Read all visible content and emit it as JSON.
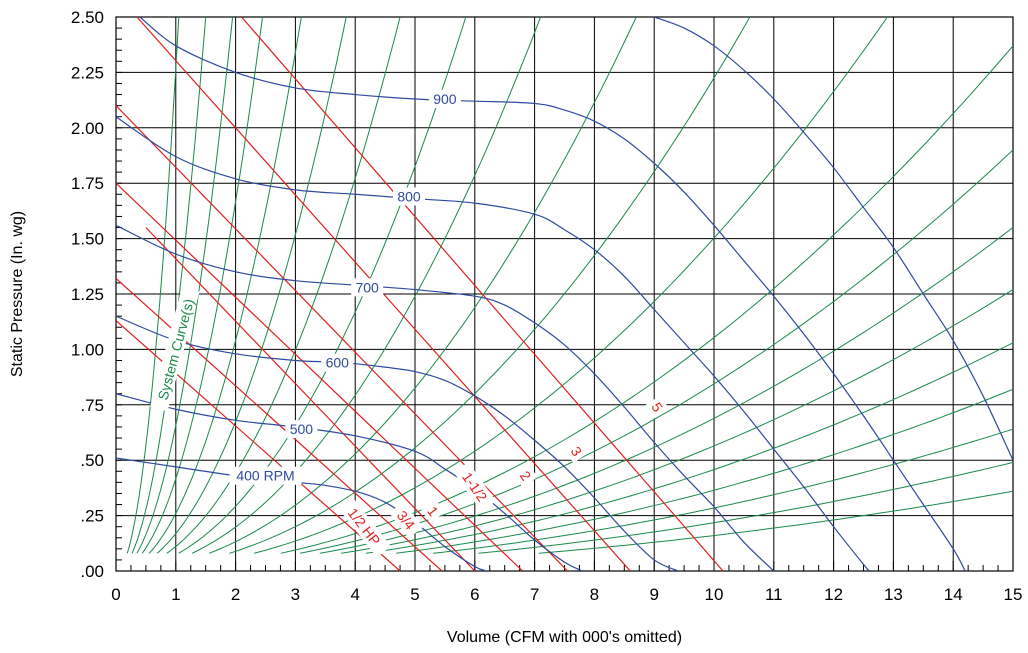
{
  "chart_data": {
    "type": "line",
    "title": "",
    "xlabel": "Volume (CFM with 000's omitted)",
    "ylabel": "Static Pressure (In. wg)",
    "xlim": [
      0,
      15
    ],
    "ylim": [
      0,
      2.5
    ],
    "grid": true,
    "x_ticks": [
      "0",
      "1",
      "2",
      "3",
      "4",
      "5",
      "6",
      "7",
      "8",
      "9",
      "10",
      "11",
      "12",
      "13",
      "14",
      "15"
    ],
    "y_ticks": [
      ".00",
      ".25",
      ".50",
      ".75",
      "1.00",
      "1.25",
      "1.50",
      "1.75",
      "2.00",
      "2.25",
      "2.50"
    ],
    "colors": {
      "rpm": "#2e4a9e",
      "hp": "#e0201c",
      "system": "#1a8a4a",
      "grid": "#000000"
    },
    "rpm_curves": [
      {
        "label": "400  RPM",
        "points": [
          [
            0,
            0.51
          ],
          [
            1,
            0.47
          ],
          [
            2,
            0.43
          ],
          [
            3,
            0.4
          ],
          [
            3.4,
            0.39
          ],
          [
            4,
            0.36
          ],
          [
            4.5,
            0.31
          ],
          [
            5,
            0.22
          ],
          [
            5.5,
            0.11
          ],
          [
            6,
            0.02
          ],
          [
            6.2,
            0
          ]
        ],
        "label_at": [
          2.5,
          0.43
        ]
      },
      {
        "label": "500",
        "points": [
          [
            0,
            0.8
          ],
          [
            1,
            0.73
          ],
          [
            2,
            0.68
          ],
          [
            3,
            0.65
          ],
          [
            4,
            0.61
          ],
          [
            5,
            0.54
          ],
          [
            5.5,
            0.46
          ],
          [
            6,
            0.37
          ],
          [
            6.5,
            0.26
          ],
          [
            7,
            0.14
          ],
          [
            7.5,
            0.04
          ],
          [
            7.8,
            0
          ]
        ],
        "label_at": [
          3.1,
          0.64
        ]
      },
      {
        "label": "600",
        "points": [
          [
            0,
            1.15
          ],
          [
            1,
            1.04
          ],
          [
            2,
            0.98
          ],
          [
            3,
            0.95
          ],
          [
            3.8,
            0.94
          ],
          [
            4.5,
            0.92
          ],
          [
            5,
            0.9
          ],
          [
            5.5,
            0.86
          ],
          [
            6,
            0.79
          ],
          [
            6.5,
            0.7
          ],
          [
            7,
            0.59
          ],
          [
            7.5,
            0.47
          ],
          [
            8,
            0.33
          ],
          [
            8.5,
            0.18
          ],
          [
            9,
            0.05
          ],
          [
            9.4,
            0
          ]
        ],
        "label_at": [
          3.7,
          0.94
        ]
      },
      {
        "label": "700",
        "points": [
          [
            0,
            1.56
          ],
          [
            1,
            1.43
          ],
          [
            2,
            1.35
          ],
          [
            3,
            1.31
          ],
          [
            4,
            1.29
          ],
          [
            5,
            1.27
          ],
          [
            6,
            1.24
          ],
          [
            6.5,
            1.2
          ],
          [
            7,
            1.12
          ],
          [
            7.5,
            1.02
          ],
          [
            8,
            0.89
          ],
          [
            8.5,
            0.74
          ],
          [
            9,
            0.58
          ],
          [
            9.5,
            0.43
          ],
          [
            10,
            0.29
          ],
          [
            10.5,
            0.13
          ],
          [
            11,
            0
          ]
        ],
        "label_at": [
          4.2,
          1.28
        ]
      },
      {
        "label": "800",
        "points": [
          [
            0,
            2.05
          ],
          [
            1,
            1.87
          ],
          [
            2,
            1.77
          ],
          [
            3,
            1.72
          ],
          [
            4,
            1.7
          ],
          [
            5,
            1.68
          ],
          [
            6,
            1.66
          ],
          [
            7,
            1.61
          ],
          [
            7.5,
            1.54
          ],
          [
            8,
            1.45
          ],
          [
            8.5,
            1.33
          ],
          [
            9,
            1.18
          ],
          [
            9.5,
            1.03
          ],
          [
            10,
            0.88
          ],
          [
            10.5,
            0.72
          ],
          [
            11,
            0.55
          ],
          [
            11.5,
            0.38
          ],
          [
            12,
            0.2
          ],
          [
            12.5,
            0.03
          ],
          [
            12.6,
            0
          ]
        ],
        "label_at": [
          4.9,
          1.69
        ]
      },
      {
        "label": "900",
        "points": [
          [
            0.4,
            2.5
          ],
          [
            1,
            2.37
          ],
          [
            2,
            2.25
          ],
          [
            3,
            2.18
          ],
          [
            4,
            2.15
          ],
          [
            5,
            2.13
          ],
          [
            6,
            2.12
          ],
          [
            7,
            2.11
          ],
          [
            7.5,
            2.08
          ],
          [
            8,
            2.03
          ],
          [
            8.5,
            1.95
          ],
          [
            9,
            1.84
          ],
          [
            9.5,
            1.71
          ],
          [
            10,
            1.56
          ],
          [
            10.5,
            1.4
          ],
          [
            11,
            1.24
          ],
          [
            11.5,
            1.07
          ],
          [
            12,
            0.89
          ],
          [
            12.5,
            0.7
          ],
          [
            13,
            0.5
          ],
          [
            13.5,
            0.3
          ],
          [
            14,
            0.1
          ],
          [
            14.2,
            0
          ]
        ],
        "label_at": [
          5.5,
          2.13
        ]
      },
      {
        "label": "",
        "points": [
          [
            9,
            2.5
          ],
          [
            9.5,
            2.45
          ],
          [
            10,
            2.37
          ],
          [
            10.5,
            2.26
          ],
          [
            11,
            2.13
          ],
          [
            11.5,
            1.98
          ],
          [
            12,
            1.82
          ],
          [
            12.5,
            1.64
          ],
          [
            13,
            1.46
          ],
          [
            13.5,
            1.25
          ],
          [
            14,
            1.04
          ],
          [
            14.5,
            0.79
          ],
          [
            15,
            0.5
          ]
        ],
        "label_at": null
      }
    ],
    "hp_curves": [
      {
        "label": "1/2  HP",
        "points": [
          [
            0,
            1.13
          ],
          [
            4.75,
            0
          ]
        ],
        "label_at": [
          4.15,
          0.2
        ],
        "angle": 52
      },
      {
        "label": "3/4",
        "points": [
          [
            0,
            1.32
          ],
          [
            5.45,
            0
          ]
        ],
        "label_at": [
          4.85,
          0.23
        ],
        "angle": 52
      },
      {
        "label": "1",
        "points": [
          [
            0.5,
            1.55
          ],
          [
            6.0,
            0
          ]
        ],
        "label_at": [
          5.3,
          0.27
        ],
        "angle": 52
      },
      {
        "label": "1-1/2",
        "points": [
          [
            0,
            1.75
          ],
          [
            6.8,
            0
          ]
        ],
        "label_at": [
          6.0,
          0.38
        ],
        "angle": 55
      },
      {
        "label": "2",
        "points": [
          [
            0,
            2.1
          ],
          [
            7.55,
            0
          ]
        ],
        "label_at": [
          6.85,
          0.43
        ],
        "angle": 55
      },
      {
        "label": "3",
        "points": [
          [
            0.35,
            2.5
          ],
          [
            8.6,
            0
          ]
        ],
        "label_at": [
          7.7,
          0.54
        ],
        "angle": 56
      },
      {
        "label": "5",
        "points": [
          [
            2.1,
            2.5
          ],
          [
            10.15,
            0
          ]
        ],
        "label_at": [
          9.05,
          0.74
        ],
        "angle": 57
      }
    ],
    "system_curves_label": "System Curve(s)",
    "system_curves_xmax": [
      1.05,
      1.5,
      1.95,
      2.45,
      3.1,
      3.85,
      4.75,
      5.85,
      7.1,
      8.7,
      10.6,
      12.9,
      15.0,
      15.0,
      15.0,
      15.0,
      15.0,
      15.0,
      15.0,
      15.0,
      15.0
    ],
    "system_curves_ymax": [
      2.5,
      2.5,
      2.5,
      2.5,
      2.5,
      2.5,
      2.5,
      2.5,
      2.5,
      2.5,
      2.5,
      2.5,
      2.37,
      1.9,
      1.55,
      1.27,
      1.03,
      0.82,
      0.64,
      0.49,
      0.36
    ],
    "system_curves_ystart": 0.08,
    "system_curves_ystart_gap": 0.3,
    "system_curve_label_at": [
      1.0,
      1.0
    ],
    "system_curve_label_angle": -75
  }
}
